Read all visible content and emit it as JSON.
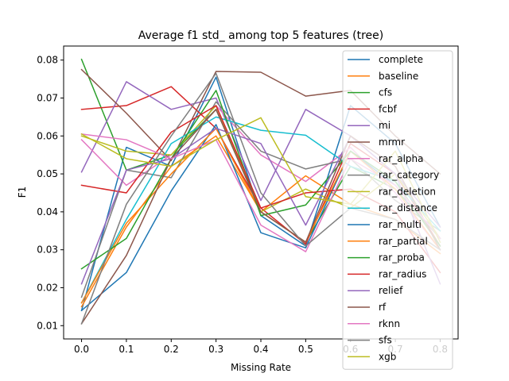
{
  "chart_data": {
    "type": "line",
    "title": "Average f1 std_ among top 5 features (tree)",
    "xlabel": "Missing Rate",
    "ylabel": "F1",
    "x": [
      0.0,
      0.1,
      0.2,
      0.3,
      0.4,
      0.5,
      0.6,
      0.7,
      0.8
    ],
    "xlim": [
      -0.04,
      0.84
    ],
    "ylim": [
      0.0065,
      0.0837
    ],
    "xticks": [
      0.0,
      0.1,
      0.2,
      0.3,
      0.4,
      0.5,
      0.6,
      0.7,
      0.8
    ],
    "xtick_labels": [
      "0.0",
      "0.1",
      "0.2",
      "0.3",
      "0.4",
      "0.5",
      "0.6",
      "0.7",
      "0.8"
    ],
    "yticks": [
      0.01,
      0.02,
      0.03,
      0.04,
      0.05,
      0.06,
      0.07,
      0.08
    ],
    "ytick_labels": [
      "0.01",
      "0.02",
      "0.03",
      "0.04",
      "0.05",
      "0.06",
      "0.07",
      "0.08"
    ],
    "legend_position": "upper right",
    "grid": false,
    "series": [
      {
        "name": "complete",
        "color": "#1f77b4",
        "values": [
          0.014,
          0.057,
          0.052,
          0.0755,
          0.039,
          0.031,
          0.068,
          0.058,
          0.036
        ]
      },
      {
        "name": "baseline",
        "color": "#ff7f0e",
        "values": [
          0.015,
          0.036,
          0.052,
          0.06,
          0.04,
          0.0495,
          0.042,
          0.038,
          0.029
        ]
      },
      {
        "name": "cfs",
        "color": "#2ca02c",
        "values": [
          0.0802,
          0.051,
          0.055,
          0.067,
          0.04,
          0.032,
          0.052,
          0.046,
          0.033
        ]
      },
      {
        "name": "fcbf",
        "color": "#d62728",
        "values": [
          0.067,
          0.068,
          0.073,
          0.062,
          0.041,
          0.0315,
          0.058,
          0.05,
          0.031
        ]
      },
      {
        "name": "mi",
        "color": "#9467bd",
        "values": [
          0.0505,
          0.0743,
          0.067,
          0.07,
          0.043,
          0.067,
          0.06,
          0.05,
          0.036
        ]
      },
      {
        "name": "mrmr",
        "color": "#8c564b",
        "values": [
          0.0775,
          0.066,
          0.0535,
          0.077,
          0.0768,
          0.0705,
          0.072,
          0.06,
          0.05
        ]
      },
      {
        "name": "rar_alpha",
        "color": "#e377c2",
        "values": [
          0.059,
          0.047,
          0.055,
          0.068,
          0.055,
          0.048,
          0.057,
          0.045,
          0.03
        ]
      },
      {
        "name": "rar_category",
        "color": "#7f7f7f",
        "values": [
          0.0175,
          0.051,
          0.049,
          0.069,
          0.056,
          0.0513,
          0.054,
          0.043,
          0.035
        ]
      },
      {
        "name": "rar_deletion",
        "color": "#bcbd22",
        "values": [
          0.06,
          0.056,
          0.055,
          0.068,
          0.04,
          0.046,
          0.041,
          0.05,
          0.033
        ]
      },
      {
        "name": "rar_distance",
        "color": "#17becf",
        "values": [
          0.016,
          0.038,
          0.058,
          0.065,
          0.0615,
          0.0602,
          0.052,
          0.048,
          0.035
        ]
      },
      {
        "name": "rar_multi",
        "color": "#1f77b4",
        "values": [
          0.014,
          0.024,
          0.0455,
          0.063,
          0.0345,
          0.0305,
          0.056,
          0.047,
          0.033
        ]
      },
      {
        "name": "rar_partial",
        "color": "#ff7f0e",
        "values": [
          0.016,
          0.037,
          0.05,
          0.062,
          0.04,
          0.032,
          0.056,
          0.046,
          0.03
        ]
      },
      {
        "name": "rar_proba",
        "color": "#2ca02c",
        "values": [
          0.025,
          0.033,
          0.054,
          0.072,
          0.039,
          0.0418,
          0.056,
          0.048,
          0.031
        ]
      },
      {
        "name": "rar_radius",
        "color": "#d62728",
        "values": [
          0.047,
          0.045,
          0.061,
          0.068,
          0.041,
          0.045,
          0.046,
          0.04,
          0.024
        ]
      },
      {
        "name": "relief",
        "color": "#9467bd",
        "values": [
          0.021,
          0.051,
          0.054,
          0.062,
          0.058,
          0.0365,
          0.06,
          0.05,
          0.021
        ]
      },
      {
        "name": "rf",
        "color": "#8c564b",
        "values": [
          0.0105,
          0.0285,
          0.054,
          0.067,
          0.04,
          0.032,
          0.06,
          0.052,
          0.03
        ]
      },
      {
        "name": "rknn",
        "color": "#e377c2",
        "values": [
          0.0605,
          0.059,
          0.054,
          0.059,
          0.0365,
          0.0295,
          0.054,
          0.047,
          0.033
        ]
      },
      {
        "name": "sfs",
        "color": "#7f7f7f",
        "values": [
          0.0105,
          0.042,
          0.06,
          0.0765,
          0.045,
          0.031,
          0.041,
          0.038,
          0.03
        ]
      },
      {
        "name": "xgb",
        "color": "#bcbd22",
        "values": [
          0.0605,
          0.054,
          0.052,
          0.059,
          0.0648,
          0.044,
          0.042,
          0.056,
          0.032
        ]
      }
    ]
  }
}
